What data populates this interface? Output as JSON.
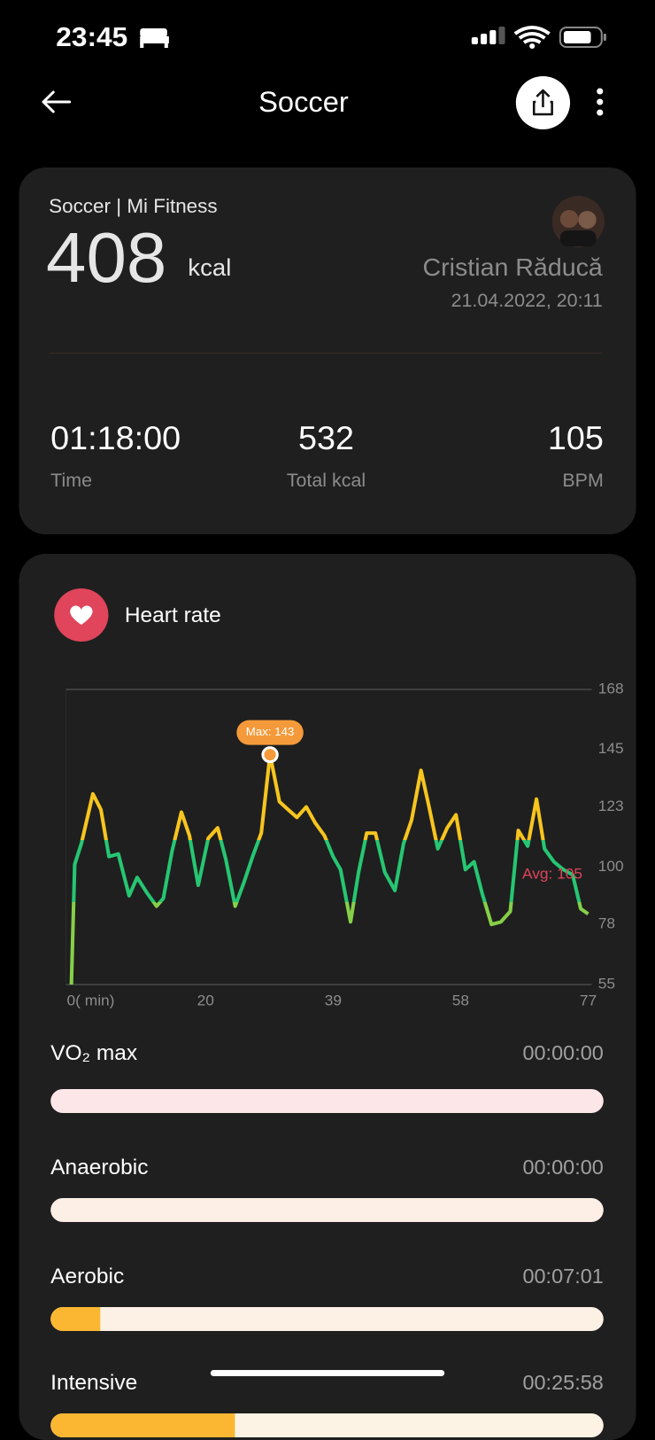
{
  "status_bar": {
    "time": "23:45"
  },
  "header": {
    "title": "Soccer"
  },
  "summary": {
    "source": "Soccer | Mi Fitness",
    "calories": "408",
    "calories_unit": "kcal",
    "user": "Cristian Răducă",
    "datetime": "21.04.2022, 20:11",
    "stats": [
      {
        "value": "01:18:00",
        "label": "Time"
      },
      {
        "value": "532",
        "label": "Total kcal"
      },
      {
        "value": "105",
        "label": "BPM"
      }
    ]
  },
  "heart_rate": {
    "title": "Heart rate"
  },
  "chart_data": {
    "type": "line",
    "x": [
      0,
      0.5,
      1.5,
      3.2,
      4.4,
      5.6,
      7,
      8.6,
      9.8,
      11.3,
      12.7,
      13.7,
      15,
      16.4,
      17.6,
      18.9,
      20.4,
      21.8,
      23,
      24.4,
      25.7,
      27,
      28.3,
      29.6,
      31,
      32.3,
      33.6,
      35,
      36.3,
      37.7,
      39,
      40.1,
      41.6,
      42.8,
      44,
      45.3,
      46.7,
      48.2,
      49.5,
      50.7,
      52.1,
      53.3,
      54.6,
      56,
      57.3,
      58.7,
      60,
      61.2,
      62.6,
      64,
      65.4,
      66.6,
      68,
      69.3,
      70.5,
      71.9,
      73.3,
      74.7,
      75.9,
      77
    ],
    "values": [
      55,
      101,
      109,
      128,
      122,
      104,
      105,
      89,
      96,
      90,
      85,
      88,
      106,
      121,
      112,
      93,
      111,
      115,
      103,
      85,
      94,
      104,
      113,
      143,
      125,
      122,
      119,
      123,
      117,
      112,
      104,
      99,
      79,
      98,
      113,
      113,
      98,
      91,
      109,
      118,
      137,
      123,
      107,
      115,
      120,
      99,
      102,
      90,
      78,
      79,
      83,
      114,
      108,
      126,
      107,
      102,
      99,
      97,
      84,
      82
    ],
    "xlim": [
      0,
      77
    ],
    "xticks": [
      {
        "value": 0,
        "label": "0( min)"
      },
      20,
      39,
      58,
      77
    ],
    "ylim": [
      55,
      168
    ],
    "yticks": [
      55,
      78,
      100,
      123,
      145,
      168
    ],
    "max_label": "Max: 143",
    "avg_label": "Avg: 105"
  },
  "zones": [
    {
      "name": "VO₂ max",
      "duration": "00:00:00",
      "track": "#fde6e8",
      "fill": "#fbb731"
    },
    {
      "name": "Anaerobic",
      "duration": "00:00:00",
      "track": "#fdeee6",
      "fill": "#fbb731"
    },
    {
      "name": "Aerobic",
      "duration": "00:07:01",
      "track": "#fdf0e4",
      "fill": "#fbb731"
    },
    {
      "name": "Intensive",
      "duration": "00:25:58",
      "track": "#fdf3e4",
      "fill": "#fbb731"
    }
  ]
}
